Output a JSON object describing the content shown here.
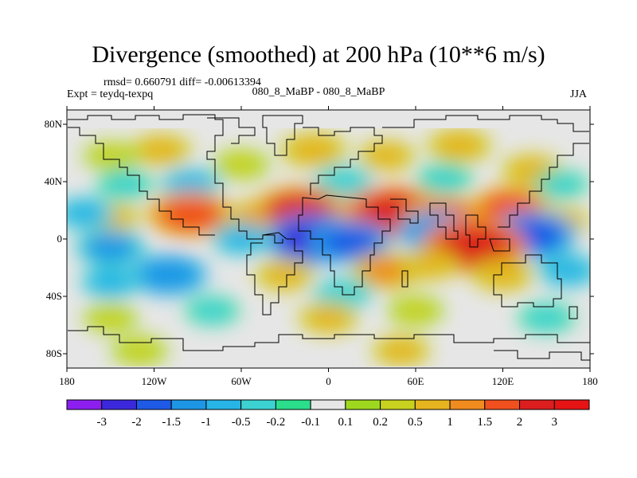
{
  "chart_data": {
    "type": "heatmap",
    "title": "Divergence (smoothed) at 200 hPa (10**6 m/s)",
    "stats_line": "rmsd= 0.660791 diff= -0.00613394",
    "left_label": "Expt = teydq-texpq",
    "center_label": "080_8_MaBP - 080_8_MaBP",
    "right_label": "JJA",
    "x_range": [
      -180,
      180
    ],
    "y_range": [
      -90,
      90
    ],
    "x_ticks": [
      {
        "value": -180,
        "label": "180"
      },
      {
        "value": -120,
        "label": "120W"
      },
      {
        "value": -60,
        "label": "60W"
      },
      {
        "value": 0,
        "label": "0"
      },
      {
        "value": 60,
        "label": "60E"
      },
      {
        "value": 120,
        "label": "120E"
      },
      {
        "value": 180,
        "label": "180"
      }
    ],
    "y_ticks": [
      {
        "value": 80,
        "label": "80N"
      },
      {
        "value": 40,
        "label": "40N"
      },
      {
        "value": 0,
        "label": "0"
      },
      {
        "value": -40,
        "label": "40S"
      },
      {
        "value": -80,
        "label": "80S"
      }
    ],
    "colorbar": {
      "labels": [
        "-3",
        "-2",
        "-1.5",
        "-1",
        "-0.5",
        "-0.2",
        "-0.1",
        "0.1",
        "0.2",
        "0.5",
        "1",
        "1.5",
        "2",
        "3"
      ],
      "colors": [
        "#8c1ff0",
        "#3c28dc",
        "#1e5ae6",
        "#1e96e6",
        "#28b4e6",
        "#3cd2d2",
        "#2ade8c",
        "#e6e6e6",
        "#9ed81e",
        "#c8d21e",
        "#e6b41e",
        "#f08c1e",
        "#f0501e",
        "#dc1e1e",
        "#e61414"
      ]
    },
    "field_blobs": [
      {
        "lon": -115,
        "lat": 62,
        "value": 0.6
      },
      {
        "lon": -150,
        "lat": 58,
        "value": 0.3
      },
      {
        "lon": -60,
        "lat": 52,
        "value": 0.4
      },
      {
        "lon": -10,
        "lat": 62,
        "value": 0.9
      },
      {
        "lon": 40,
        "lat": 58,
        "value": 0.5
      },
      {
        "lon": 90,
        "lat": 65,
        "value": 0.8
      },
      {
        "lon": 140,
        "lat": 48,
        "value": 0.6
      },
      {
        "lon": -140,
        "lat": 38,
        "value": -0.4
      },
      {
        "lon": -95,
        "lat": 38,
        "value": -0.6
      },
      {
        "lon": 10,
        "lat": 40,
        "value": -0.5
      },
      {
        "lon": 80,
        "lat": 42,
        "value": -0.4
      },
      {
        "lon": 160,
        "lat": 38,
        "value": -0.3
      },
      {
        "lon": -150,
        "lat": 15,
        "value": 0.5
      },
      {
        "lon": -95,
        "lat": 17,
        "value": 1.9
      },
      {
        "lon": -45,
        "lat": 15,
        "value": 1.0
      },
      {
        "lon": -20,
        "lat": 20,
        "value": 2.2
      },
      {
        "lon": 45,
        "lat": 18,
        "value": 2.6
      },
      {
        "lon": 80,
        "lat": 15,
        "value": 1.6
      },
      {
        "lon": 125,
        "lat": 22,
        "value": 1.5
      },
      {
        "lon": 160,
        "lat": 12,
        "value": 0.5
      },
      {
        "lon": -168,
        "lat": 18,
        "value": -0.6
      },
      {
        "lon": -10,
        "lat": 0,
        "value": -2.4
      },
      {
        "lon": 15,
        "lat": -2,
        "value": -1.6
      },
      {
        "lon": 75,
        "lat": 5,
        "value": -1.5
      },
      {
        "lon": 140,
        "lat": 3,
        "value": -2.0
      },
      {
        "lon": 100,
        "lat": -5,
        "value": 2.7
      },
      {
        "lon": -60,
        "lat": 0,
        "value": -0.6
      },
      {
        "lon": -150,
        "lat": -6,
        "value": -1.1
      },
      {
        "lon": -110,
        "lat": -25,
        "value": -1.4
      },
      {
        "lon": -150,
        "lat": -30,
        "value": -0.6
      },
      {
        "lon": -30,
        "lat": -25,
        "value": 0.6
      },
      {
        "lon": 40,
        "lat": -22,
        "value": 1.1
      },
      {
        "lon": 70,
        "lat": -18,
        "value": 0.5
      },
      {
        "lon": 120,
        "lat": -25,
        "value": 0.7
      },
      {
        "lon": 165,
        "lat": -22,
        "value": -0.7
      },
      {
        "lon": 10,
        "lat": -38,
        "value": -0.5
      },
      {
        "lon": -150,
        "lat": -55,
        "value": 0.3
      },
      {
        "lon": -80,
        "lat": -50,
        "value": -0.3
      },
      {
        "lon": 0,
        "lat": -55,
        "value": 0.6
      },
      {
        "lon": 60,
        "lat": -50,
        "value": 0.4
      },
      {
        "lon": 150,
        "lat": -55,
        "value": -0.4
      },
      {
        "lon": -130,
        "lat": -78,
        "value": 0.4
      },
      {
        "lon": 50,
        "lat": -78,
        "value": 0.5
      }
    ]
  }
}
